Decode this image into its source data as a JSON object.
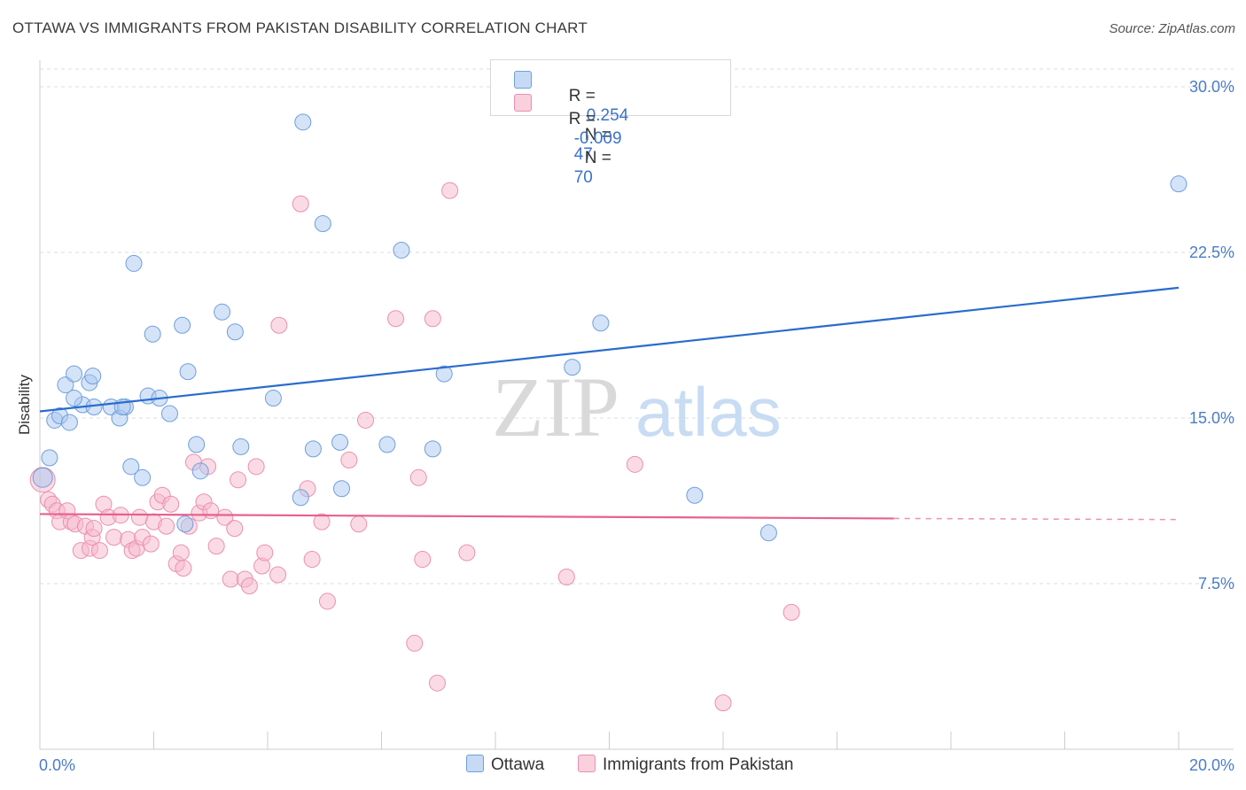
{
  "title": "OTTAWA VS IMMIGRANTS FROM PAKISTAN DISABILITY CORRELATION CHART",
  "source": "Source: ZipAtlas.com",
  "watermark": {
    "zip": "ZIP",
    "atlas": "atlas"
  },
  "legend": {
    "rows": [
      {
        "r_label": "R =",
        "r_value": "0.254",
        "n_label": "N =",
        "n_value": "47"
      },
      {
        "r_label": "R =",
        "r_value": "-0.009",
        "n_label": "N =",
        "n_value": "70"
      }
    ]
  },
  "bottom_legend": {
    "ottawa": "Ottawa",
    "pakistan": "Immigrants from Pakistan"
  },
  "colors": {
    "ottawa_fill": "#a9c8f0",
    "ottawa_stroke": "#6f9fdc",
    "ottawa_line": "#2a6ccc",
    "pakistan_fill": "#f6b8cc",
    "pakistan_stroke": "#ec8fae",
    "pakistan_line": "#e8608f",
    "tick_text": "#4a7cc9",
    "grid": "#dddddd"
  },
  "chart_data": {
    "type": "scatter",
    "title": "OTTAWA VS IMMIGRANTS FROM PAKISTAN DISABILITY CORRELATION CHART",
    "xlabel": "",
    "ylabel": "Disability",
    "xlim": [
      0,
      20
    ],
    "ylim": [
      0,
      30.8
    ],
    "x_tick_labels": [
      "0.0%",
      "20.0%"
    ],
    "y_ticks": [
      7.5,
      15.0,
      22.5,
      30.0
    ],
    "y_tick_labels": [
      "7.5%",
      "15.0%",
      "22.5%",
      "30.0%"
    ],
    "grid": true,
    "legend_position": "top-center",
    "series": [
      {
        "name": "Ottawa",
        "points": [
          [
            0.05,
            12.3
          ],
          [
            0.17,
            13.2
          ],
          [
            0.26,
            14.9
          ],
          [
            0.35,
            15.1
          ],
          [
            0.45,
            16.5
          ],
          [
            0.52,
            14.8
          ],
          [
            0.6,
            17.0
          ],
          [
            0.75,
            15.6
          ],
          [
            0.87,
            16.6
          ],
          [
            0.93,
            16.9
          ],
          [
            1.25,
            15.5
          ],
          [
            1.4,
            15.0
          ],
          [
            0.6,
            15.9
          ],
          [
            1.5,
            15.5
          ],
          [
            1.6,
            12.8
          ],
          [
            1.8,
            12.3
          ],
          [
            1.65,
            22.0
          ],
          [
            1.9,
            16.0
          ],
          [
            1.98,
            18.8
          ],
          [
            2.1,
            15.9
          ],
          [
            2.28,
            15.2
          ],
          [
            2.5,
            19.2
          ],
          [
            2.6,
            17.1
          ],
          [
            2.75,
            13.8
          ],
          [
            2.82,
            12.6
          ],
          [
            3.2,
            19.8
          ],
          [
            3.43,
            18.9
          ],
          [
            3.53,
            13.7
          ],
          [
            4.1,
            15.9
          ],
          [
            4.58,
            11.4
          ],
          [
            4.62,
            28.4
          ],
          [
            4.8,
            13.6
          ],
          [
            4.97,
            23.8
          ],
          [
            5.27,
            13.9
          ],
          [
            5.3,
            11.8
          ],
          [
            6.1,
            13.8
          ],
          [
            6.35,
            22.6
          ],
          [
            6.9,
            13.6
          ],
          [
            7.1,
            17.0
          ],
          [
            9.35,
            17.3
          ],
          [
            9.85,
            19.3
          ],
          [
            11.5,
            11.5
          ],
          [
            12.8,
            9.8
          ],
          [
            20.0,
            25.6
          ],
          [
            2.55,
            10.2
          ],
          [
            1.45,
            15.5
          ],
          [
            0.95,
            15.5
          ]
        ]
      },
      {
        "name": "Immigrants from Pakistan",
        "points": [
          [
            0.05,
            12.2
          ],
          [
            0.15,
            11.3
          ],
          [
            0.22,
            11.1
          ],
          [
            0.3,
            10.8
          ],
          [
            0.35,
            10.3
          ],
          [
            0.48,
            10.8
          ],
          [
            0.55,
            10.3
          ],
          [
            0.62,
            10.2
          ],
          [
            0.72,
            9.0
          ],
          [
            0.8,
            10.1
          ],
          [
            0.88,
            9.1
          ],
          [
            0.92,
            9.6
          ],
          [
            1.05,
            9.0
          ],
          [
            1.12,
            11.1
          ],
          [
            1.2,
            10.5
          ],
          [
            1.3,
            9.6
          ],
          [
            1.42,
            10.6
          ],
          [
            1.55,
            9.5
          ],
          [
            1.62,
            9.0
          ],
          [
            1.7,
            9.1
          ],
          [
            1.75,
            10.5
          ],
          [
            1.8,
            9.6
          ],
          [
            1.95,
            9.3
          ],
          [
            2.0,
            10.3
          ],
          [
            2.07,
            11.2
          ],
          [
            2.15,
            11.5
          ],
          [
            2.22,
            10.1
          ],
          [
            2.3,
            11.1
          ],
          [
            2.4,
            8.4
          ],
          [
            2.48,
            8.9
          ],
          [
            2.52,
            8.2
          ],
          [
            2.62,
            10.1
          ],
          [
            2.7,
            13.0
          ],
          [
            2.8,
            10.7
          ],
          [
            2.88,
            11.2
          ],
          [
            2.95,
            12.8
          ],
          [
            3.0,
            10.8
          ],
          [
            3.1,
            9.2
          ],
          [
            3.25,
            10.5
          ],
          [
            3.35,
            7.7
          ],
          [
            3.42,
            10.0
          ],
          [
            3.48,
            12.2
          ],
          [
            3.6,
            7.7
          ],
          [
            3.68,
            7.4
          ],
          [
            3.8,
            12.8
          ],
          [
            3.9,
            8.3
          ],
          [
            3.95,
            8.9
          ],
          [
            4.18,
            7.9
          ],
          [
            4.2,
            19.2
          ],
          [
            4.58,
            24.7
          ],
          [
            4.7,
            11.8
          ],
          [
            4.78,
            8.6
          ],
          [
            4.95,
            10.3
          ],
          [
            5.05,
            6.7
          ],
          [
            5.43,
            13.1
          ],
          [
            5.6,
            10.2
          ],
          [
            5.72,
            14.9
          ],
          [
            6.25,
            19.5
          ],
          [
            6.58,
            4.8
          ],
          [
            6.65,
            12.3
          ],
          [
            6.72,
            8.6
          ],
          [
            6.9,
            19.5
          ],
          [
            6.98,
            3.0
          ],
          [
            7.2,
            25.3
          ],
          [
            7.5,
            8.9
          ],
          [
            9.25,
            7.8
          ],
          [
            10.45,
            12.9
          ],
          [
            12.0,
            2.1
          ],
          [
            13.2,
            6.2
          ],
          [
            0.95,
            10.0
          ]
        ]
      }
    ],
    "trendlines": [
      {
        "series": "Ottawa",
        "x": [
          0,
          20
        ],
        "y": [
          15.3,
          20.9
        ]
      },
      {
        "series": "Immigrants from Pakistan",
        "x": [
          0,
          15.0
        ],
        "y": [
          10.65,
          10.45
        ],
        "dashed_to": [
          20,
          10.4
        ]
      }
    ]
  }
}
